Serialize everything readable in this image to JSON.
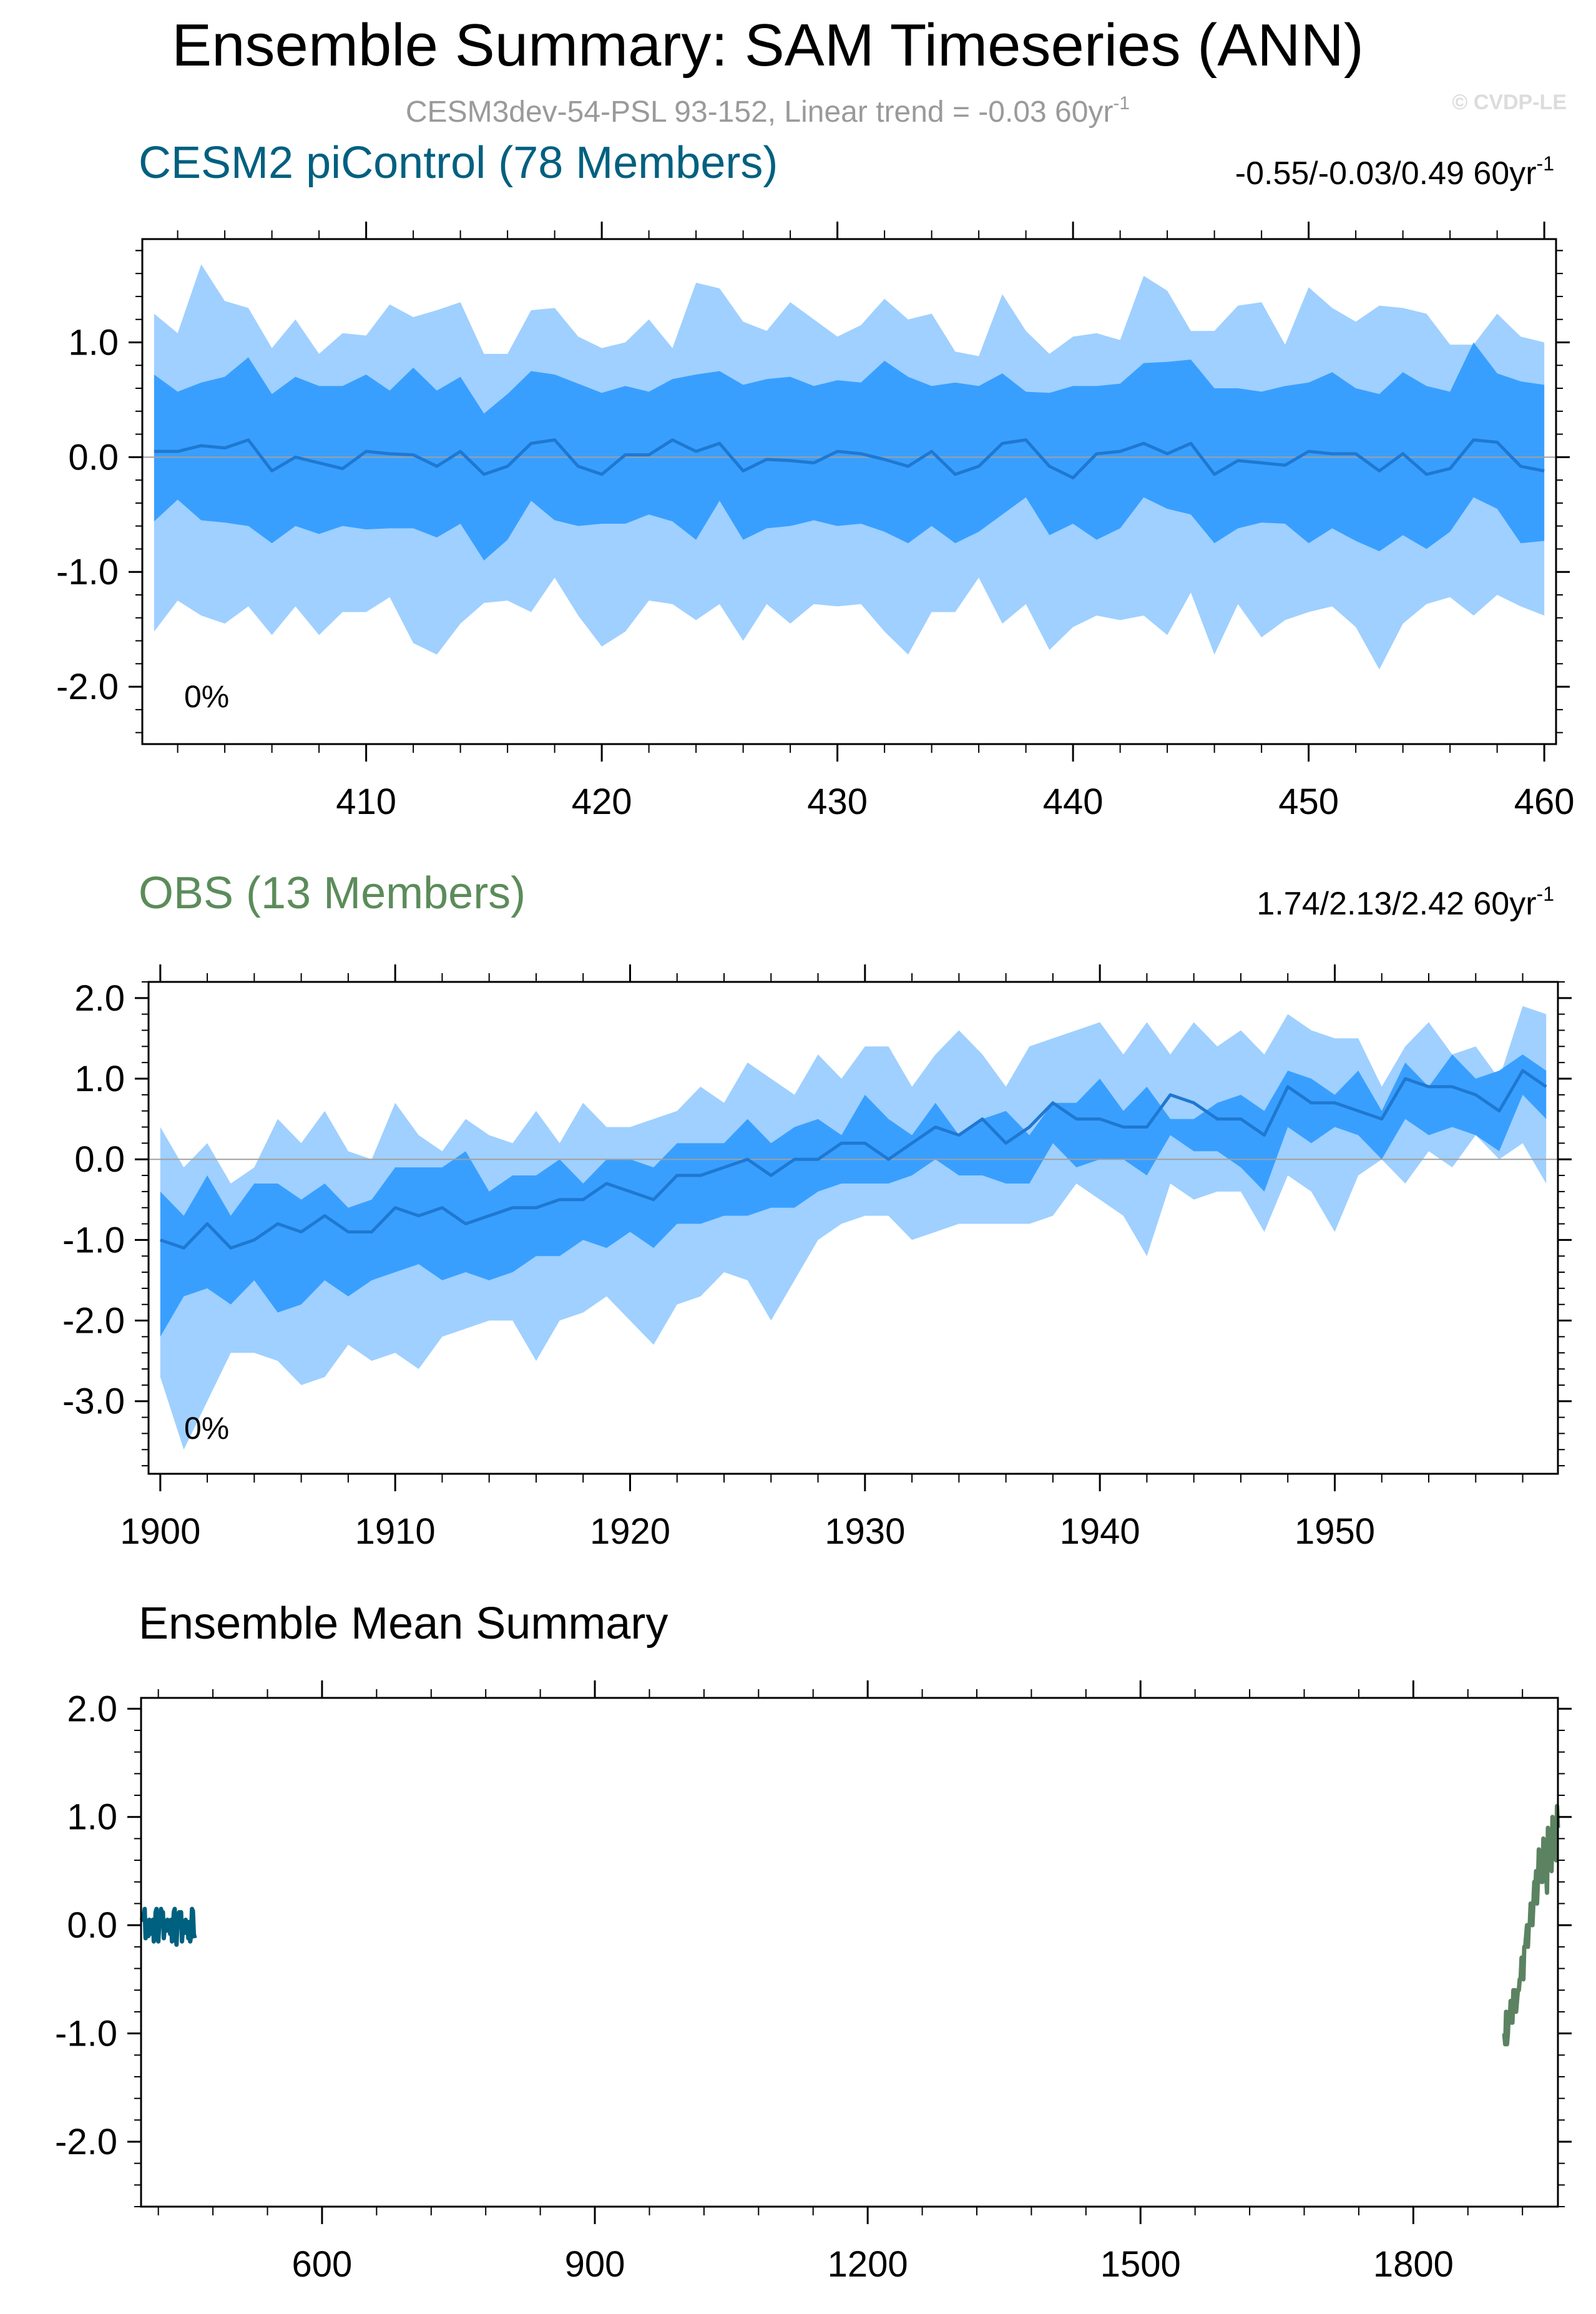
{
  "figure": {
    "title": "Ensemble Summary: SAM Timeseries (ANN)",
    "subtitle": "CESM3dev-54-PSL 93-152, Linear trend = -0.03 60yr",
    "subtitle_sup": "-1",
    "watermark": "© CVDP-LE"
  },
  "colors": {
    "outer_band": "#9fd0ff",
    "inner_band": "#399fff",
    "mean_line": "#1f78d1",
    "cesm2_title": "#006080",
    "obs_title": "#5b8c5a",
    "summary_cesm2": "#00607f",
    "summary_obs": "#5b8361",
    "zero_line": "#a0a0a0"
  },
  "chart_data": [
    {
      "id": "cesm2",
      "type": "area",
      "title": "CESM2 piControl (78 Members)",
      "trend_label": "-0.55/-0.03/0.49 60yr",
      "trend_sup": "-1",
      "percent_label": "0%",
      "xlabel": "",
      "ylabel": "",
      "xlim": [
        400.5,
        460.5
      ],
      "ylim": [
        -2.5,
        1.9
      ],
      "xticks": [
        410,
        420,
        430,
        440,
        450,
        460
      ],
      "xtick_labels": [
        "410",
        "420",
        "430",
        "440",
        "450",
        "460"
      ],
      "yticks": [
        1.0,
        0.0,
        -1.0,
        -2.0
      ],
      "ytick_labels": [
        "1.0",
        "0.0",
        "-1.0",
        "-2.0"
      ],
      "x": [
        401,
        402,
        403,
        404,
        405,
        406,
        407,
        408,
        409,
        410,
        411,
        412,
        413,
        414,
        415,
        416,
        417,
        418,
        419,
        420,
        421,
        422,
        423,
        424,
        425,
        426,
        427,
        428,
        429,
        430,
        431,
        432,
        433,
        434,
        435,
        436,
        437,
        438,
        439,
        440,
        441,
        442,
        443,
        444,
        445,
        446,
        447,
        448,
        449,
        450,
        451,
        452,
        453,
        454,
        455,
        456,
        457,
        458,
        459,
        460
      ],
      "series": [
        {
          "name": "p97.5",
          "values": [
            1.25,
            1.08,
            1.68,
            1.36,
            1.3,
            0.95,
            1.2,
            0.9,
            1.08,
            1.06,
            1.33,
            1.22,
            1.28,
            1.35,
            0.9,
            0.9,
            1.28,
            1.3,
            1.05,
            0.95,
            1.0,
            1.2,
            0.95,
            1.52,
            1.47,
            1.18,
            1.1,
            1.35,
            1.2,
            1.05,
            1.15,
            1.38,
            1.2,
            1.25,
            0.92,
            0.88,
            1.42,
            1.1,
            0.9,
            1.05,
            1.08,
            1.02,
            1.58,
            1.45,
            1.1,
            1.1,
            1.32,
            1.35,
            0.98,
            1.48,
            1.3,
            1.18,
            1.32,
            1.3,
            1.25,
            0.98,
            0.98,
            1.25,
            1.05,
            1.0
          ]
        },
        {
          "name": "p83.3",
          "values": [
            0.72,
            0.57,
            0.65,
            0.7,
            0.87,
            0.55,
            0.7,
            0.62,
            0.62,
            0.72,
            0.58,
            0.78,
            0.58,
            0.7,
            0.38,
            0.55,
            0.75,
            0.72,
            0.64,
            0.56,
            0.62,
            0.57,
            0.68,
            0.72,
            0.75,
            0.63,
            0.68,
            0.7,
            0.62,
            0.67,
            0.65,
            0.84,
            0.7,
            0.62,
            0.65,
            0.62,
            0.73,
            0.57,
            0.56,
            0.62,
            0.62,
            0.64,
            0.82,
            0.83,
            0.85,
            0.6,
            0.6,
            0.57,
            0.62,
            0.65,
            0.74,
            0.6,
            0.55,
            0.74,
            0.62,
            0.57,
            1.0,
            0.73,
            0.66,
            0.63
          ]
        },
        {
          "name": "mean",
          "values": [
            0.05,
            0.05,
            0.1,
            0.08,
            0.15,
            -0.12,
            0.0,
            -0.05,
            -0.1,
            0.05,
            0.03,
            0.02,
            -0.08,
            0.05,
            -0.15,
            -0.08,
            0.12,
            0.15,
            -0.08,
            -0.15,
            0.02,
            0.02,
            0.15,
            0.05,
            0.12,
            -0.12,
            -0.02,
            -0.03,
            -0.05,
            0.05,
            0.03,
            -0.02,
            -0.08,
            0.05,
            -0.15,
            -0.08,
            0.12,
            0.15,
            -0.08,
            -0.18,
            0.03,
            0.05,
            0.12,
            0.03,
            0.12,
            -0.15,
            -0.03,
            -0.05,
            -0.07,
            0.05,
            0.03,
            0.03,
            -0.12,
            0.03,
            -0.15,
            -0.1,
            0.15,
            0.13,
            -0.08,
            -0.12
          ]
        },
        {
          "name": "p16.7",
          "values": [
            -0.56,
            -0.37,
            -0.55,
            -0.57,
            -0.6,
            -0.75,
            -0.6,
            -0.67,
            -0.6,
            -0.63,
            -0.62,
            -0.62,
            -0.7,
            -0.58,
            -0.9,
            -0.72,
            -0.38,
            -0.55,
            -0.6,
            -0.58,
            -0.58,
            -0.5,
            -0.56,
            -0.72,
            -0.38,
            -0.72,
            -0.62,
            -0.6,
            -0.55,
            -0.6,
            -0.58,
            -0.65,
            -0.75,
            -0.6,
            -0.75,
            -0.65,
            -0.5,
            -0.35,
            -0.68,
            -0.58,
            -0.72,
            -0.62,
            -0.35,
            -0.45,
            -0.5,
            -0.75,
            -0.62,
            -0.57,
            -0.58,
            -0.75,
            -0.62,
            -0.73,
            -0.82,
            -0.68,
            -0.8,
            -0.65,
            -0.35,
            -0.45,
            -0.75,
            -0.73
          ]
        },
        {
          "name": "p2.5",
          "values": [
            -1.52,
            -1.25,
            -1.38,
            -1.45,
            -1.3,
            -1.55,
            -1.3,
            -1.55,
            -1.35,
            -1.35,
            -1.22,
            -1.62,
            -1.72,
            -1.45,
            -1.27,
            -1.25,
            -1.35,
            -1.05,
            -1.38,
            -1.65,
            -1.52,
            -1.25,
            -1.28,
            -1.42,
            -1.28,
            -1.6,
            -1.28,
            -1.45,
            -1.28,
            -1.3,
            -1.28,
            -1.52,
            -1.72,
            -1.35,
            -1.35,
            -1.05,
            -1.45,
            -1.28,
            -1.68,
            -1.48,
            -1.38,
            -1.42,
            -1.38,
            -1.55,
            -1.18,
            -1.72,
            -1.28,
            -1.57,
            -1.42,
            -1.35,
            -1.3,
            -1.48,
            -1.85,
            -1.45,
            -1.28,
            -1.22,
            -1.38,
            -1.2,
            -1.3,
            -1.38
          ]
        }
      ]
    },
    {
      "id": "obs",
      "type": "area",
      "title": "OBS (13 Members)",
      "trend_label": "1.74/2.13/2.42 60yr",
      "trend_sup": "-1",
      "percent_label": "0%",
      "xlabel": "",
      "ylabel": "",
      "xlim": [
        1899.5,
        1959.5
      ],
      "ylim": [
        -3.9,
        2.2
      ],
      "xticks": [
        1900,
        1910,
        1920,
        1930,
        1940,
        1950
      ],
      "xtick_labels": [
        "1900",
        "1910",
        "1920",
        "1930",
        "1940",
        "1950"
      ],
      "yticks": [
        2.0,
        1.0,
        0.0,
        -1.0,
        -2.0,
        -3.0
      ],
      "ytick_labels": [
        "2.0",
        "1.0",
        "0.0",
        "-1.0",
        "-2.0",
        "-3.0"
      ],
      "x": [
        1900,
        1901,
        1902,
        1903,
        1904,
        1905,
        1906,
        1907,
        1908,
        1909,
        1910,
        1911,
        1912,
        1913,
        1914,
        1915,
        1916,
        1917,
        1918,
        1919,
        1920,
        1921,
        1922,
        1923,
        1924,
        1925,
        1926,
        1927,
        1928,
        1929,
        1930,
        1931,
        1932,
        1933,
        1934,
        1935,
        1936,
        1937,
        1938,
        1939,
        1940,
        1941,
        1942,
        1943,
        1944,
        1945,
        1946,
        1947,
        1948,
        1949,
        1950,
        1951,
        1952,
        1953,
        1954,
        1955,
        1956,
        1957,
        1958,
        1959
      ],
      "series": [
        {
          "name": "p97.5",
          "values": [
            0.4,
            -0.1,
            0.2,
            -0.3,
            -0.1,
            0.5,
            0.2,
            0.6,
            0.1,
            0.0,
            0.7,
            0.3,
            0.1,
            0.5,
            0.3,
            0.2,
            0.6,
            0.2,
            0.7,
            0.4,
            0.4,
            0.5,
            0.6,
            0.9,
            0.7,
            1.2,
            1.0,
            0.8,
            1.3,
            1.0,
            1.4,
            1.4,
            0.9,
            1.3,
            1.6,
            1.3,
            0.9,
            1.4,
            1.5,
            1.6,
            1.7,
            1.3,
            1.7,
            1.3,
            1.7,
            1.4,
            1.6,
            1.3,
            1.8,
            1.6,
            1.5,
            1.5,
            0.9,
            1.4,
            1.7,
            1.3,
            1.4,
            1.0,
            1.9,
            1.8
          ]
        },
        {
          "name": "p83.3",
          "values": [
            -0.4,
            -0.7,
            -0.2,
            -0.7,
            -0.3,
            -0.3,
            -0.5,
            -0.3,
            -0.6,
            -0.5,
            -0.1,
            -0.1,
            -0.1,
            0.1,
            -0.4,
            -0.2,
            -0.2,
            0.0,
            -0.3,
            0.0,
            0.0,
            -0.1,
            0.2,
            0.2,
            0.2,
            0.5,
            0.2,
            0.4,
            0.5,
            0.3,
            0.8,
            0.5,
            0.3,
            0.7,
            0.3,
            0.5,
            0.6,
            0.3,
            0.7,
            0.7,
            1.0,
            0.6,
            0.9,
            0.5,
            0.5,
            0.7,
            0.8,
            0.6,
            1.1,
            1.0,
            0.8,
            1.1,
            0.6,
            1.2,
            0.9,
            1.3,
            1.0,
            1.1,
            1.3,
            1.1
          ]
        },
        {
          "name": "mean",
          "values": [
            -1.0,
            -1.1,
            -0.8,
            -1.1,
            -1.0,
            -0.8,
            -0.9,
            -0.7,
            -0.9,
            -0.9,
            -0.6,
            -0.7,
            -0.6,
            -0.8,
            -0.7,
            -0.6,
            -0.6,
            -0.5,
            -0.5,
            -0.3,
            -0.4,
            -0.5,
            -0.2,
            -0.2,
            -0.1,
            0.0,
            -0.2,
            0.0,
            0.0,
            0.2,
            0.2,
            0.0,
            0.2,
            0.4,
            0.3,
            0.5,
            0.2,
            0.4,
            0.7,
            0.5,
            0.5,
            0.4,
            0.4,
            0.8,
            0.7,
            0.5,
            0.5,
            0.3,
            0.9,
            0.7,
            0.7,
            0.6,
            0.5,
            1.0,
            0.9,
            0.9,
            0.8,
            0.6,
            1.1,
            0.9
          ]
        },
        {
          "name": "p16.7",
          "values": [
            -2.2,
            -1.7,
            -1.6,
            -1.8,
            -1.5,
            -1.9,
            -1.8,
            -1.5,
            -1.7,
            -1.5,
            -1.4,
            -1.3,
            -1.5,
            -1.4,
            -1.5,
            -1.4,
            -1.2,
            -1.2,
            -1.0,
            -1.1,
            -0.9,
            -1.1,
            -0.8,
            -0.8,
            -0.7,
            -0.7,
            -0.6,
            -0.6,
            -0.4,
            -0.3,
            -0.3,
            -0.3,
            -0.2,
            0.0,
            -0.2,
            -0.2,
            -0.3,
            -0.3,
            0.2,
            -0.1,
            0.0,
            0.0,
            -0.2,
            0.3,
            0.1,
            0.1,
            -0.1,
            -0.4,
            0.4,
            0.2,
            0.4,
            0.3,
            0.0,
            0.5,
            0.3,
            0.4,
            0.3,
            0.1,
            0.8,
            0.5
          ]
        },
        {
          "name": "p2.5",
          "values": [
            -2.7,
            -3.6,
            -3.0,
            -2.4,
            -2.4,
            -2.5,
            -2.8,
            -2.7,
            -2.3,
            -2.5,
            -2.4,
            -2.6,
            -2.2,
            -2.1,
            -2.0,
            -2.0,
            -2.5,
            -2.0,
            -1.9,
            -1.7,
            -2.0,
            -2.3,
            -1.8,
            -1.7,
            -1.4,
            -1.5,
            -2.0,
            -1.5,
            -1.0,
            -0.8,
            -0.7,
            -0.7,
            -1.0,
            -0.9,
            -0.8,
            -0.8,
            -0.8,
            -0.8,
            -0.7,
            -0.3,
            -0.5,
            -0.7,
            -1.2,
            -0.3,
            -0.5,
            -0.4,
            -0.4,
            -0.9,
            -0.2,
            -0.4,
            -0.9,
            -0.2,
            0.0,
            -0.3,
            0.1,
            -0.1,
            0.3,
            0.0,
            0.2,
            -0.3
          ]
        }
      ]
    },
    {
      "id": "summary",
      "type": "line",
      "title": "Ensemble Mean Summary",
      "xlabel": "",
      "ylabel": "",
      "xlim": [
        401,
        1959
      ],
      "ylim": [
        -2.6,
        2.1
      ],
      "xticks": [
        600,
        900,
        1200,
        1500,
        1800
      ],
      "xtick_labels": [
        "600",
        "900",
        "1200",
        "1500",
        "1800"
      ],
      "yticks": [
        2.0,
        1.0,
        0.0,
        -1.0,
        -2.0
      ],
      "ytick_labels": [
        "2.0",
        "1.0",
        "0.0",
        "-1.0",
        "-2.0"
      ],
      "series": [
        {
          "name": "CESM2 piControl",
          "ref": "cesm2",
          "color_key": "summary_cesm2"
        },
        {
          "name": "OBS",
          "ref": "obs",
          "color_key": "summary_obs"
        }
      ]
    }
  ]
}
